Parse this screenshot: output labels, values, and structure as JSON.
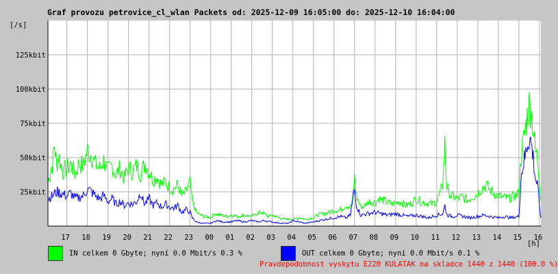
{
  "title": "Graf provozu petrovice_cl_wlan Packets od: 2025-12-09 16:05:00 do: 2025-12-10 16:04:00",
  "y_unit": "[/s]",
  "x_unit": "[h]",
  "legend": [
    {
      "label": "IN celkem 0 Gbyte; nyní   0.0 Mbit/s 0.3 %",
      "color": "#00ff00"
    },
    {
      "label": "OUT celkem 0 Gbyte; nyní   0.0 Mbit/s 0.1 %",
      "color": "#0000ff"
    }
  ],
  "footer": "Pravdepodobnost vyskytu E220 KULATAK na skladce 1440 z 1440 (100.0 %)",
  "chart_data": {
    "type": "line",
    "grid": true,
    "x_range_hours": [
      16.08,
      40.07
    ],
    "ylim": [
      0,
      150
    ],
    "y_ticks": [
      {
        "value": 25,
        "label": "25kbit"
      },
      {
        "value": 50,
        "label": "50kbit"
      },
      {
        "value": 75,
        "label": "75kbit"
      },
      {
        "value": 100,
        "label": "100kbit"
      },
      {
        "value": 125,
        "label": "125kbit"
      }
    ],
    "x_ticks": [
      {
        "value": 17,
        "label": "17"
      },
      {
        "value": 18,
        "label": "18"
      },
      {
        "value": 19,
        "label": "19"
      },
      {
        "value": 20,
        "label": "20"
      },
      {
        "value": 21,
        "label": "21"
      },
      {
        "value": 22,
        "label": "22"
      },
      {
        "value": 23,
        "label": "23"
      },
      {
        "value": 24,
        "label": "00"
      },
      {
        "value": 25,
        "label": "01"
      },
      {
        "value": 26,
        "label": "02"
      },
      {
        "value": 27,
        "label": "03"
      },
      {
        "value": 28,
        "label": "04"
      },
      {
        "value": 29,
        "label": "05"
      },
      {
        "value": 30,
        "label": "06"
      },
      {
        "value": 31,
        "label": "07"
      },
      {
        "value": 32,
        "label": "08"
      },
      {
        "value": 33,
        "label": "09"
      },
      {
        "value": 34,
        "label": "10"
      },
      {
        "value": 35,
        "label": "11"
      },
      {
        "value": 36,
        "label": "12"
      },
      {
        "value": 37,
        "label": "13"
      },
      {
        "value": 38,
        "label": "14"
      },
      {
        "value": 39,
        "label": "15"
      },
      {
        "value": 40,
        "label": "16"
      }
    ],
    "series": [
      {
        "name": "IN",
        "color": "#00ff00",
        "points": [
          [
            16.08,
            32
          ],
          [
            16.2,
            40
          ],
          [
            16.3,
            45
          ],
          [
            16.4,
            60
          ],
          [
            16.5,
            44
          ],
          [
            16.6,
            52
          ],
          [
            16.8,
            40
          ],
          [
            17,
            42
          ],
          [
            17.2,
            45
          ],
          [
            17.4,
            38
          ],
          [
            17.6,
            46
          ],
          [
            17.8,
            44
          ],
          [
            18,
            55
          ],
          [
            18.2,
            52
          ],
          [
            18.4,
            45
          ],
          [
            18.6,
            42
          ],
          [
            18.8,
            48
          ],
          [
            19,
            40
          ],
          [
            19.2,
            44
          ],
          [
            19.4,
            38
          ],
          [
            19.6,
            42
          ],
          [
            19.8,
            35
          ],
          [
            20,
            42
          ],
          [
            20.2,
            40
          ],
          [
            20.4,
            44
          ],
          [
            20.6,
            38
          ],
          [
            20.8,
            46
          ],
          [
            21,
            40
          ],
          [
            21.2,
            34
          ],
          [
            21.4,
            36
          ],
          [
            21.6,
            30
          ],
          [
            21.8,
            32
          ],
          [
            22,
            28
          ],
          [
            22.2,
            27
          ],
          [
            22.4,
            30
          ],
          [
            22.6,
            22
          ],
          [
            22.8,
            25
          ],
          [
            23,
            32
          ],
          [
            23.1,
            18
          ],
          [
            23.3,
            10
          ],
          [
            23.5,
            8
          ],
          [
            23.7,
            7
          ],
          [
            24,
            6
          ],
          [
            24.2,
            9
          ],
          [
            24.5,
            8
          ],
          [
            24.8,
            7
          ],
          [
            25,
            8
          ],
          [
            25.3,
            7
          ],
          [
            25.6,
            8
          ],
          [
            26,
            7
          ],
          [
            26.2,
            9
          ],
          [
            26.5,
            10
          ],
          [
            26.8,
            7
          ],
          [
            27,
            8
          ],
          [
            27.3,
            6
          ],
          [
            27.6,
            5
          ],
          [
            28,
            5
          ],
          [
            28.3,
            6
          ],
          [
            28.6,
            5
          ],
          [
            29,
            6
          ],
          [
            29.2,
            8
          ],
          [
            29.5,
            9
          ],
          [
            29.8,
            10
          ],
          [
            30,
            12
          ],
          [
            30.2,
            11
          ],
          [
            30.4,
            13
          ],
          [
            30.6,
            15
          ],
          [
            30.8,
            14
          ],
          [
            30.9,
            18
          ],
          [
            31,
            35
          ],
          [
            31.1,
            22
          ],
          [
            31.3,
            14
          ],
          [
            31.5,
            15
          ],
          [
            31.7,
            18
          ],
          [
            32,
            17
          ],
          [
            32.2,
            20
          ],
          [
            32.5,
            18
          ],
          [
            32.8,
            16
          ],
          [
            33,
            17
          ],
          [
            33.2,
            18
          ],
          [
            33.5,
            15
          ],
          [
            33.8,
            17
          ],
          [
            34,
            20
          ],
          [
            34.2,
            18
          ],
          [
            34.5,
            17
          ],
          [
            34.8,
            16
          ],
          [
            35,
            18
          ],
          [
            35.2,
            25
          ],
          [
            35.3,
            32
          ],
          [
            35.4,
            60
          ],
          [
            35.45,
            40
          ],
          [
            35.5,
            28
          ],
          [
            35.7,
            22
          ],
          [
            36,
            20
          ],
          [
            36.2,
            21
          ],
          [
            36.5,
            19
          ],
          [
            36.8,
            22
          ],
          [
            37,
            24
          ],
          [
            37.2,
            28
          ],
          [
            37.4,
            30
          ],
          [
            37.6,
            26
          ],
          [
            37.8,
            24
          ],
          [
            38,
            22
          ],
          [
            38.2,
            21
          ],
          [
            38.5,
            20
          ],
          [
            38.8,
            22
          ],
          [
            39,
            24
          ],
          [
            39.1,
            50
          ],
          [
            39.2,
            60
          ],
          [
            39.3,
            70
          ],
          [
            39.4,
            80
          ],
          [
            39.5,
            88
          ],
          [
            39.6,
            85
          ],
          [
            39.7,
            72
          ],
          [
            39.8,
            55
          ],
          [
            39.9,
            50
          ],
          [
            40,
            35
          ],
          [
            40.07,
            18
          ]
        ]
      },
      {
        "name": "OUT",
        "color": "#0000ff",
        "points": [
          [
            16.08,
            20
          ],
          [
            16.3,
            22
          ],
          [
            16.5,
            25
          ],
          [
            16.7,
            24
          ],
          [
            17,
            22
          ],
          [
            17.2,
            24
          ],
          [
            17.4,
            20
          ],
          [
            17.6,
            21
          ],
          [
            17.8,
            22
          ],
          [
            18,
            27
          ],
          [
            18.2,
            25
          ],
          [
            18.4,
            22
          ],
          [
            18.6,
            20
          ],
          [
            18.8,
            22
          ],
          [
            19,
            18
          ],
          [
            19.2,
            20
          ],
          [
            19.4,
            16
          ],
          [
            19.6,
            18
          ],
          [
            19.8,
            15
          ],
          [
            20,
            17
          ],
          [
            20.2,
            16
          ],
          [
            20.4,
            18
          ],
          [
            20.6,
            25
          ],
          [
            20.7,
            19
          ],
          [
            20.8,
            16
          ],
          [
            21,
            20
          ],
          [
            21.2,
            15
          ],
          [
            21.4,
            17
          ],
          [
            21.6,
            14
          ],
          [
            21.8,
            16
          ],
          [
            22,
            14
          ],
          [
            22.2,
            13
          ],
          [
            22.4,
            15
          ],
          [
            22.6,
            10
          ],
          [
            22.8,
            12
          ],
          [
            23,
            10
          ],
          [
            23.1,
            6
          ],
          [
            23.3,
            3
          ],
          [
            23.6,
            2
          ],
          [
            24,
            2
          ],
          [
            24.3,
            4
          ],
          [
            24.6,
            3
          ],
          [
            25,
            3
          ],
          [
            25.3,
            4
          ],
          [
            25.6,
            3
          ],
          [
            26,
            4
          ],
          [
            26.3,
            3
          ],
          [
            26.6,
            4
          ],
          [
            27,
            3
          ],
          [
            27.4,
            2
          ],
          [
            27.8,
            2
          ],
          [
            28,
            4
          ],
          [
            28.3,
            3
          ],
          [
            28.6,
            2
          ],
          [
            29,
            3
          ],
          [
            29.3,
            4
          ],
          [
            29.6,
            5
          ],
          [
            30,
            6
          ],
          [
            30.3,
            7
          ],
          [
            30.6,
            6
          ],
          [
            30.8,
            8
          ],
          [
            31,
            27
          ],
          [
            31.1,
            15
          ],
          [
            31.3,
            8
          ],
          [
            31.6,
            9
          ],
          [
            32,
            10
          ],
          [
            32.3,
            9
          ],
          [
            32.6,
            8
          ],
          [
            33,
            9
          ],
          [
            33.3,
            8
          ],
          [
            33.6,
            7
          ],
          [
            34,
            8
          ],
          [
            34.3,
            7
          ],
          [
            34.6,
            6
          ],
          [
            35,
            8
          ],
          [
            35.3,
            9
          ],
          [
            35.4,
            15
          ],
          [
            35.5,
            8
          ],
          [
            35.8,
            7
          ],
          [
            36,
            8
          ],
          [
            36.3,
            7
          ],
          [
            36.6,
            6
          ],
          [
            37,
            7
          ],
          [
            37.3,
            8
          ],
          [
            37.6,
            7
          ],
          [
            38,
            6
          ],
          [
            38.3,
            7
          ],
          [
            38.6,
            6
          ],
          [
            39,
            7
          ],
          [
            39.1,
            35
          ],
          [
            39.2,
            45
          ],
          [
            39.3,
            50
          ],
          [
            39.4,
            60
          ],
          [
            39.5,
            65
          ],
          [
            39.6,
            60
          ],
          [
            39.7,
            50
          ],
          [
            39.8,
            35
          ],
          [
            39.9,
            30
          ],
          [
            40,
            15
          ],
          [
            40.07,
            6
          ]
        ]
      }
    ]
  }
}
